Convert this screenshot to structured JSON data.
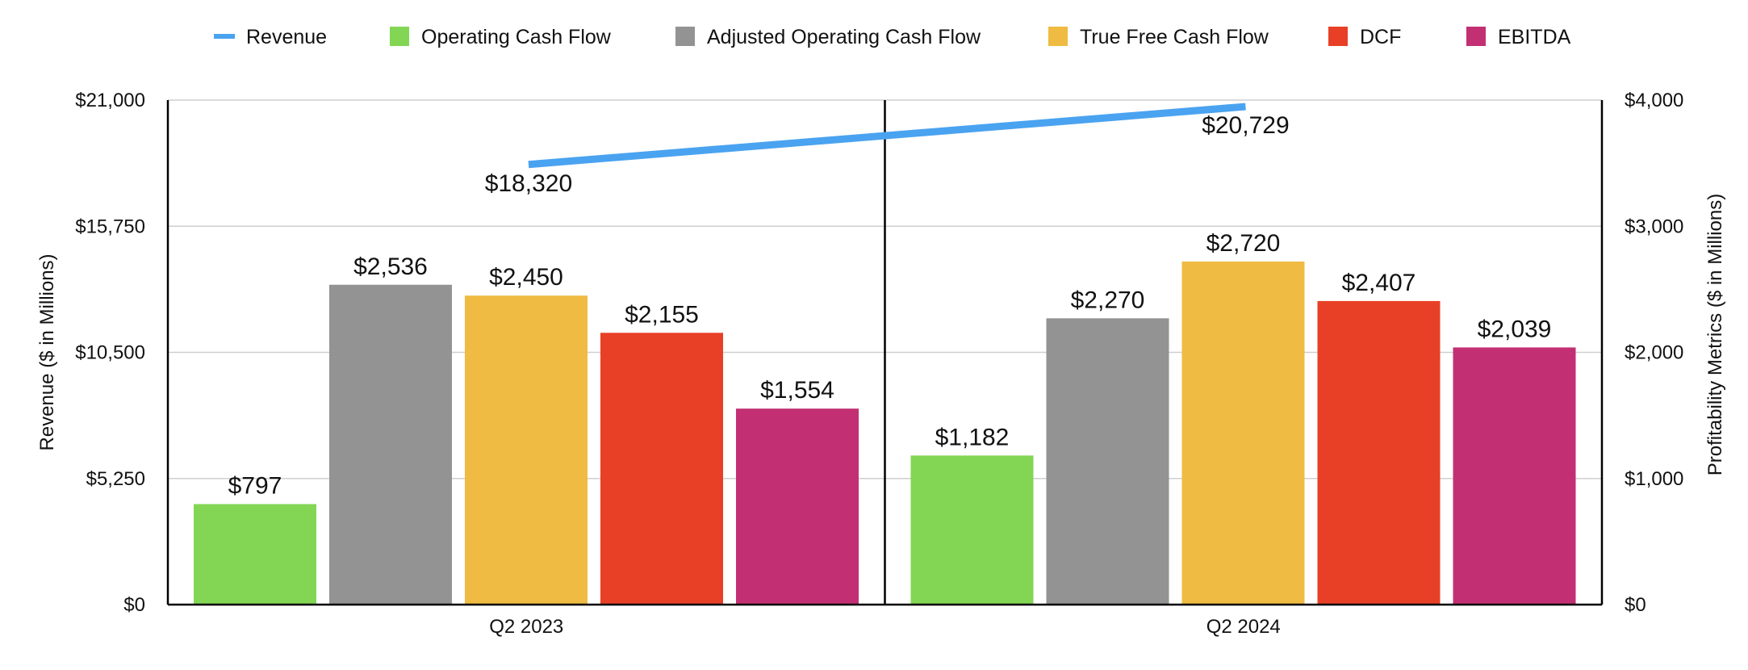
{
  "chart_data": {
    "type": "bar",
    "categories": [
      "Q2 2023",
      "Q2 2024"
    ],
    "y_left": {
      "label": "Revenue ($ in Millions)",
      "range": [
        0,
        21000
      ],
      "ticks": [
        0,
        5250,
        10500,
        15750,
        21000
      ],
      "tick_labels": [
        "$0",
        "$5,250",
        "$10,500",
        "$15,750",
        "$21,000"
      ]
    },
    "y_right": {
      "label": "Profitability Metrics ($ in Millions)",
      "range": [
        0,
        4000
      ],
      "ticks": [
        0,
        1000,
        2000,
        3000,
        4000
      ],
      "tick_labels": [
        "$0",
        "$1,000",
        "$2,000",
        "$3,000",
        "$4,000"
      ]
    },
    "grid": true,
    "legend_position": "top",
    "line_series": {
      "name": "Revenue",
      "type": "line",
      "axis": "left",
      "color": "#4aa3f0",
      "values": [
        18320,
        20729
      ],
      "labels": [
        "$18,320",
        "$20,729"
      ]
    },
    "series": [
      {
        "name": "Operating Cash Flow",
        "axis": "right",
        "color": "#82d654",
        "values": [
          797,
          1182
        ],
        "labels": [
          "$797",
          "$1,182"
        ]
      },
      {
        "name": "Adjusted Operating Cash Flow",
        "axis": "right",
        "color": "#939393",
        "values": [
          2536,
          2270
        ],
        "labels": [
          "$2,536",
          "$2,270"
        ]
      },
      {
        "name": "True Free Cash Flow",
        "axis": "right",
        "color": "#efbb42",
        "values": [
          2450,
          2720
        ],
        "labels": [
          "$2,450",
          "$2,720"
        ]
      },
      {
        "name": "DCF",
        "axis": "right",
        "color": "#e84026",
        "values": [
          2155,
          2407
        ],
        "labels": [
          "$2,155",
          "$2,407"
        ]
      },
      {
        "name": "EBITDA",
        "axis": "right",
        "color": "#c23073",
        "values": [
          1554,
          2039
        ],
        "labels": [
          "$1,554",
          "$2,039"
        ]
      }
    ]
  }
}
